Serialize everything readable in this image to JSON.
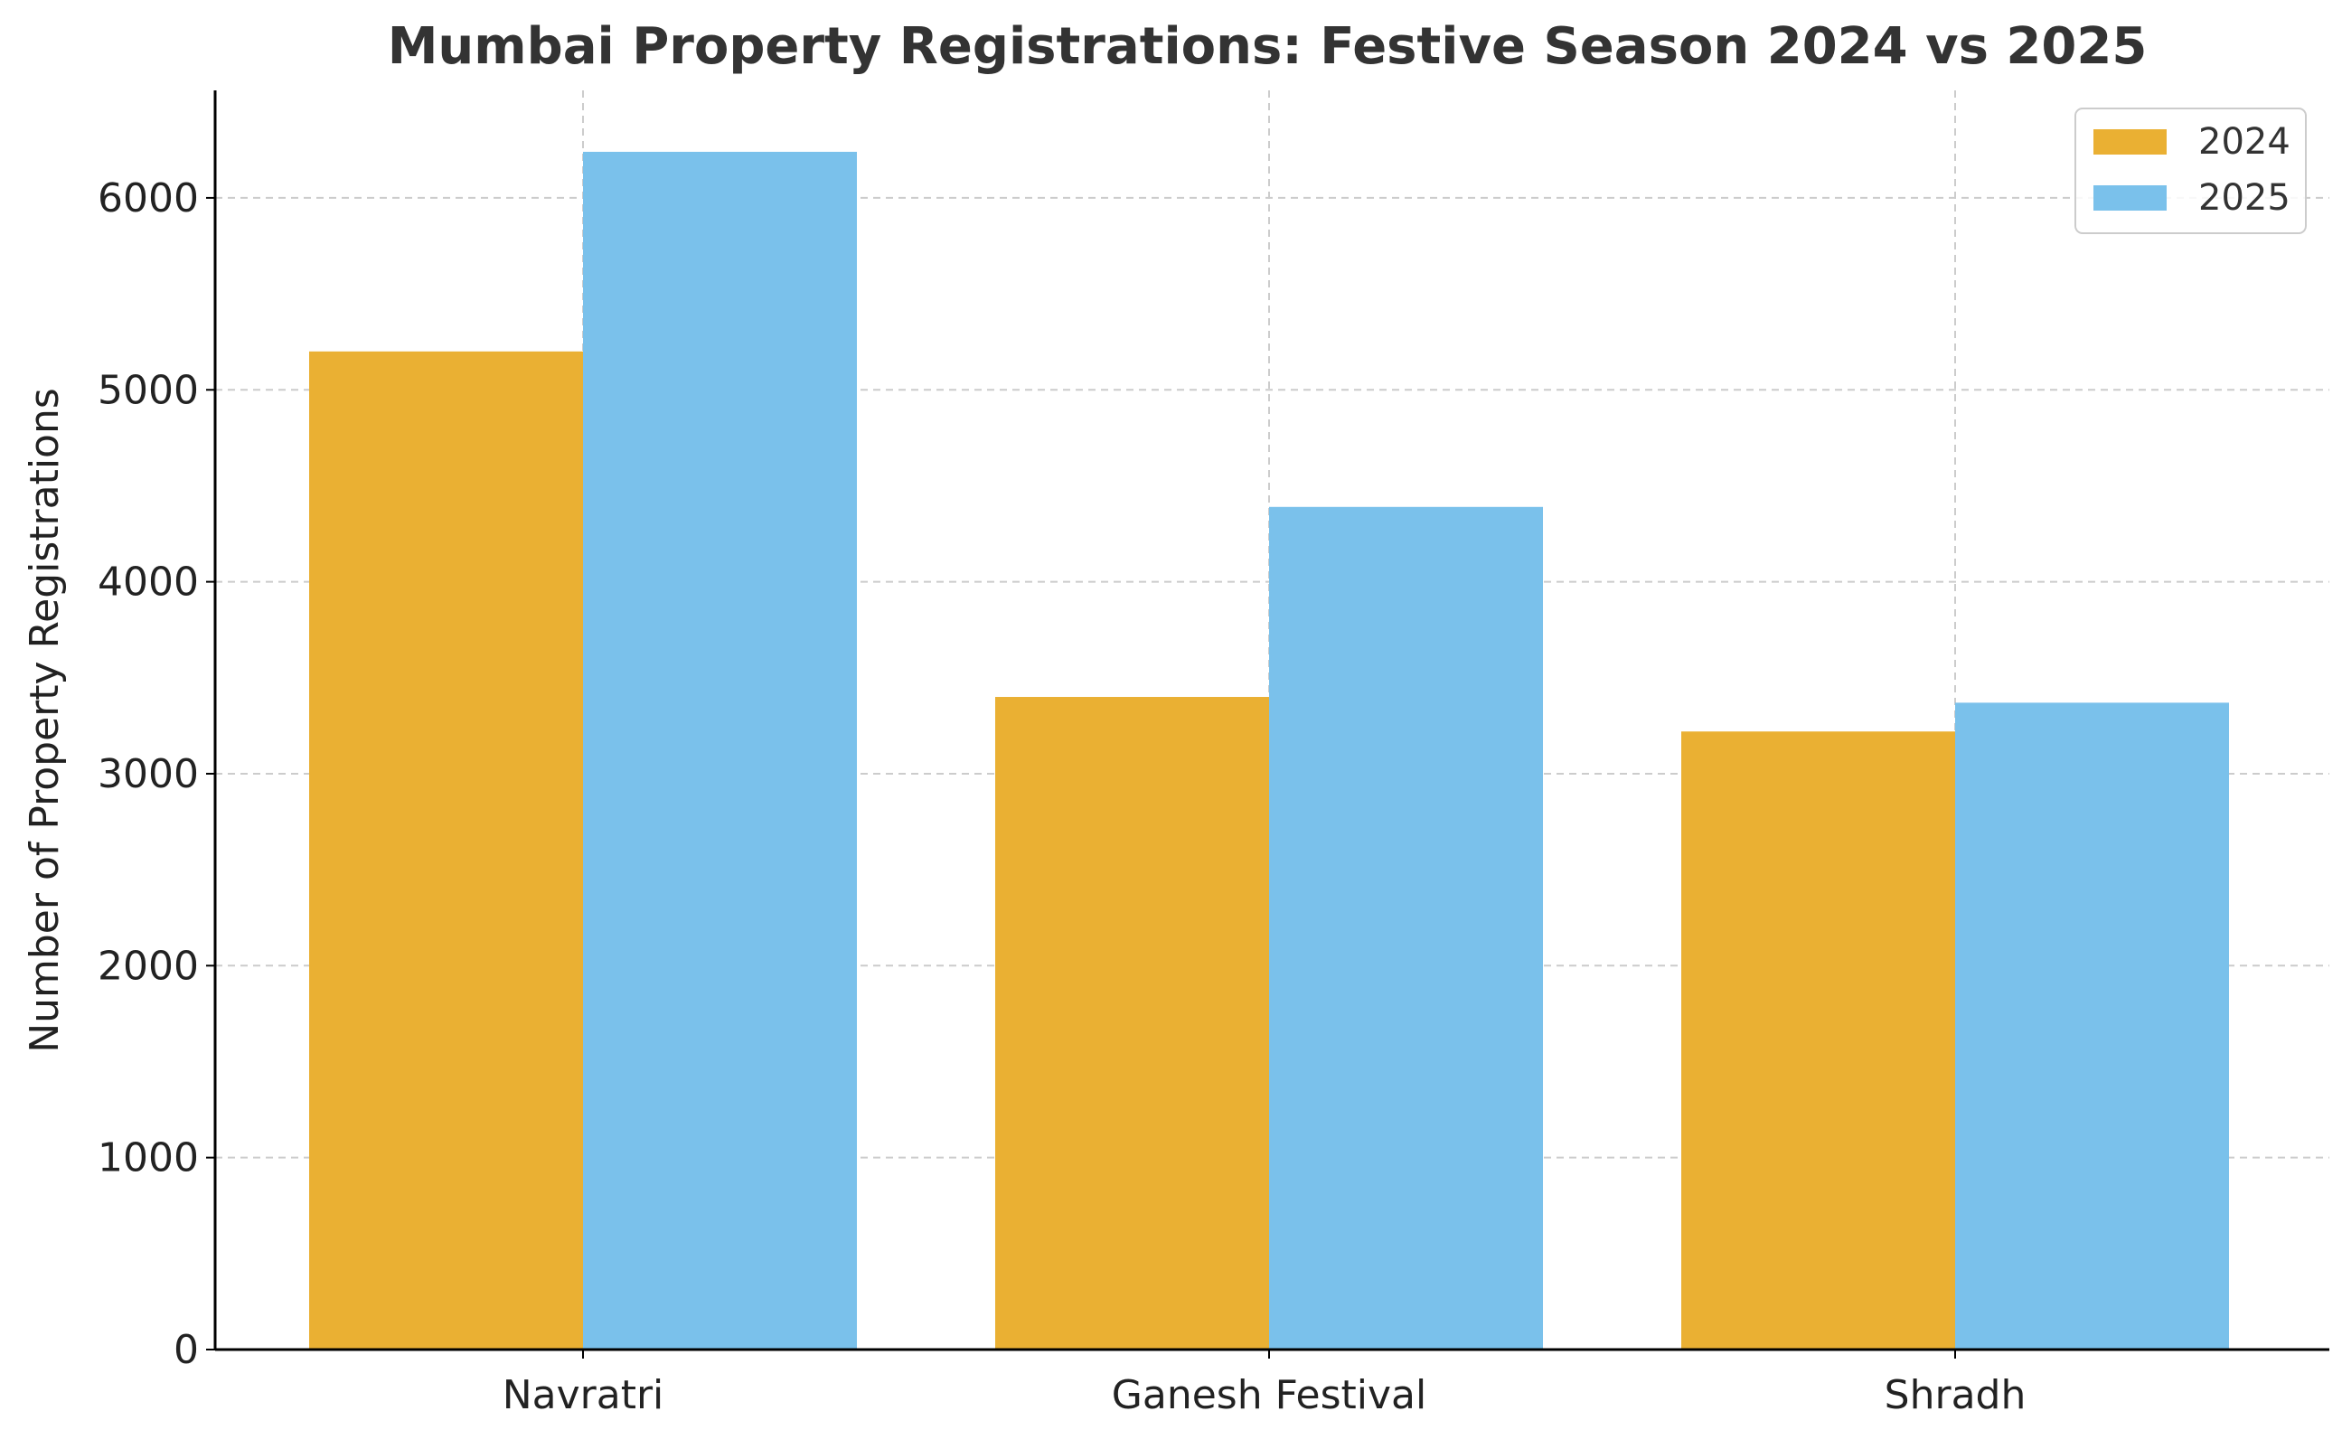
{
  "chart_data": {
    "type": "bar",
    "title": "Mumbai Property Registrations: Festive Season 2024 vs 2025",
    "xlabel": "",
    "ylabel": "Number of Property Registrations",
    "categories": [
      "Navratri",
      "Ganesh Festival",
      "Shradh"
    ],
    "series": [
      {
        "name": "2024",
        "values": [
          5200,
          3400,
          3220
        ],
        "color": "#EAB033"
      },
      {
        "name": "2025",
        "values": [
          6240,
          4390,
          3370
        ],
        "color": "#7AC1EB"
      }
    ],
    "ylim": [
      0,
      6560
    ],
    "yticks": [
      0,
      1000,
      2000,
      3000,
      4000,
      5000,
      6000
    ],
    "grid": true,
    "legend_position": "top-right",
    "colors": {
      "grid": "#cccccc",
      "axis": "#000000",
      "text": "#222222",
      "title": "#333333",
      "legend_border": "#cccccc"
    }
  }
}
